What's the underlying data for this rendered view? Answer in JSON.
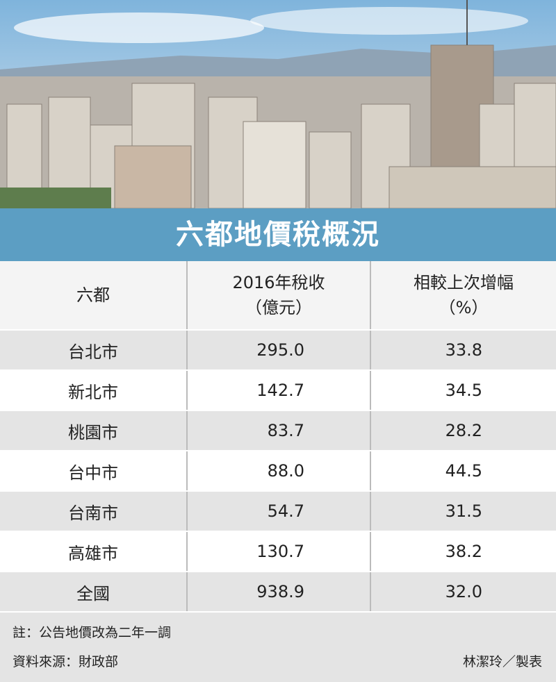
{
  "header": {
    "title": "六都地價稅概況"
  },
  "table": {
    "columns": [
      [
        "六都"
      ],
      [
        "2016年稅收",
        "（億元）"
      ],
      [
        "相較上次增幅",
        "（%）"
      ]
    ],
    "rows": [
      [
        "台北市",
        "295.0",
        "33.8"
      ],
      [
        "新北市",
        "142.7",
        "34.5"
      ],
      [
        "桃園市",
        "83.7",
        "28.2"
      ],
      [
        "台中市",
        "88.0",
        "44.5"
      ],
      [
        "台南市",
        "54.7",
        "31.5"
      ],
      [
        "高雄市",
        "130.7",
        "38.2"
      ],
      [
        "全國",
        "938.9",
        "32.0"
      ]
    ]
  },
  "footer": {
    "note": "註：公告地價改為二年一調",
    "source": "資料來源：財政部",
    "credit": "林潔玲／製表"
  }
}
